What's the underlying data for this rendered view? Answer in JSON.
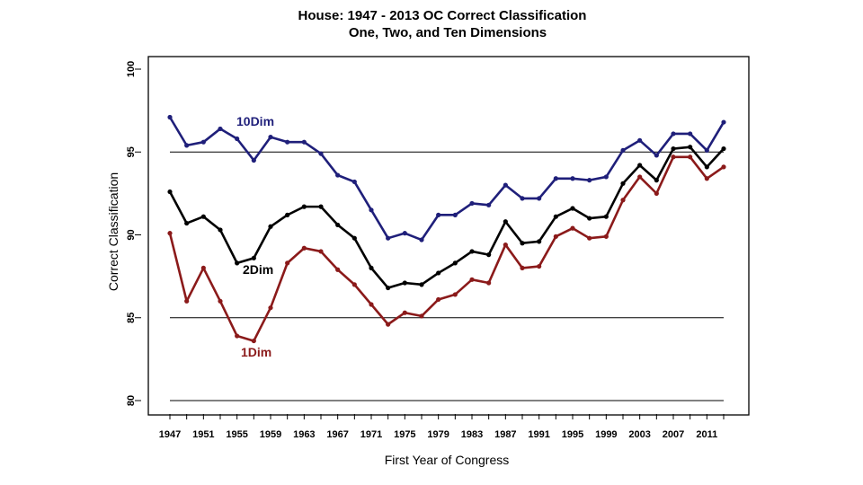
{
  "chart_data": {
    "type": "line",
    "title": "House: 1947 - 2013 OC Correct Classification",
    "subtitle": "One, Two, and Ten Dimensions",
    "xlabel": "First Year of Congress",
    "ylabel": "Correct Classification",
    "ylim": [
      80,
      100
    ],
    "yticks": [
      "80",
      "85",
      "90",
      "95",
      "100"
    ],
    "gridlines_y": [
      80,
      85,
      95
    ],
    "x": [
      1947,
      1949,
      1951,
      1953,
      1955,
      1957,
      1959,
      1961,
      1963,
      1965,
      1967,
      1969,
      1971,
      1973,
      1975,
      1977,
      1979,
      1981,
      1983,
      1985,
      1987,
      1989,
      1991,
      1993,
      1995,
      1997,
      1999,
      2001,
      2003,
      2005,
      2007,
      2009,
      2011,
      2013
    ],
    "xticks": [
      "1947",
      "1951",
      "1955",
      "1959",
      "1963",
      "1967",
      "1971",
      "1975",
      "1979",
      "1983",
      "1987",
      "1991",
      "1995",
      "1999",
      "2003",
      "2007",
      "2011"
    ],
    "series": [
      {
        "name": "10Dim",
        "color": "#1f1f7a",
        "values": [
          97.1,
          95.4,
          95.6,
          96.4,
          95.8,
          94.5,
          95.9,
          95.6,
          95.6,
          94.9,
          93.6,
          93.2,
          91.5,
          89.8,
          90.1,
          89.7,
          91.2,
          91.2,
          91.9,
          91.8,
          93.0,
          92.2,
          92.2,
          93.4,
          93.4,
          93.3,
          93.5,
          95.1,
          95.7,
          94.8,
          96.1,
          96.1,
          95.1,
          96.8
        ]
      },
      {
        "name": "2Dim",
        "color": "#000000",
        "values": [
          92.6,
          90.7,
          91.1,
          90.3,
          88.3,
          88.6,
          90.5,
          91.2,
          91.7,
          91.7,
          90.6,
          89.8,
          88.0,
          86.8,
          87.1,
          87.0,
          87.7,
          88.3,
          89.0,
          88.8,
          90.8,
          89.5,
          89.6,
          91.1,
          91.6,
          91.0,
          91.1,
          93.1,
          94.2,
          93.3,
          95.2,
          95.3,
          94.1,
          95.2
        ]
      },
      {
        "name": "1Dim",
        "color": "#8b1a1a",
        "values": [
          90.1,
          86.0,
          88.0,
          86.0,
          83.9,
          83.6,
          85.6,
          88.3,
          89.2,
          89.0,
          87.9,
          87.0,
          85.8,
          84.6,
          85.3,
          85.1,
          86.1,
          86.4,
          87.3,
          87.1,
          89.4,
          88.0,
          88.1,
          89.9,
          90.4,
          89.8,
          89.9,
          92.1,
          93.5,
          92.5,
          94.7,
          94.7,
          93.4,
          94.1
        ]
      }
    ],
    "series_label_text": {
      "10Dim": "10Dim",
      "2Dim": "2Dim",
      "1Dim": "1Dim"
    }
  }
}
